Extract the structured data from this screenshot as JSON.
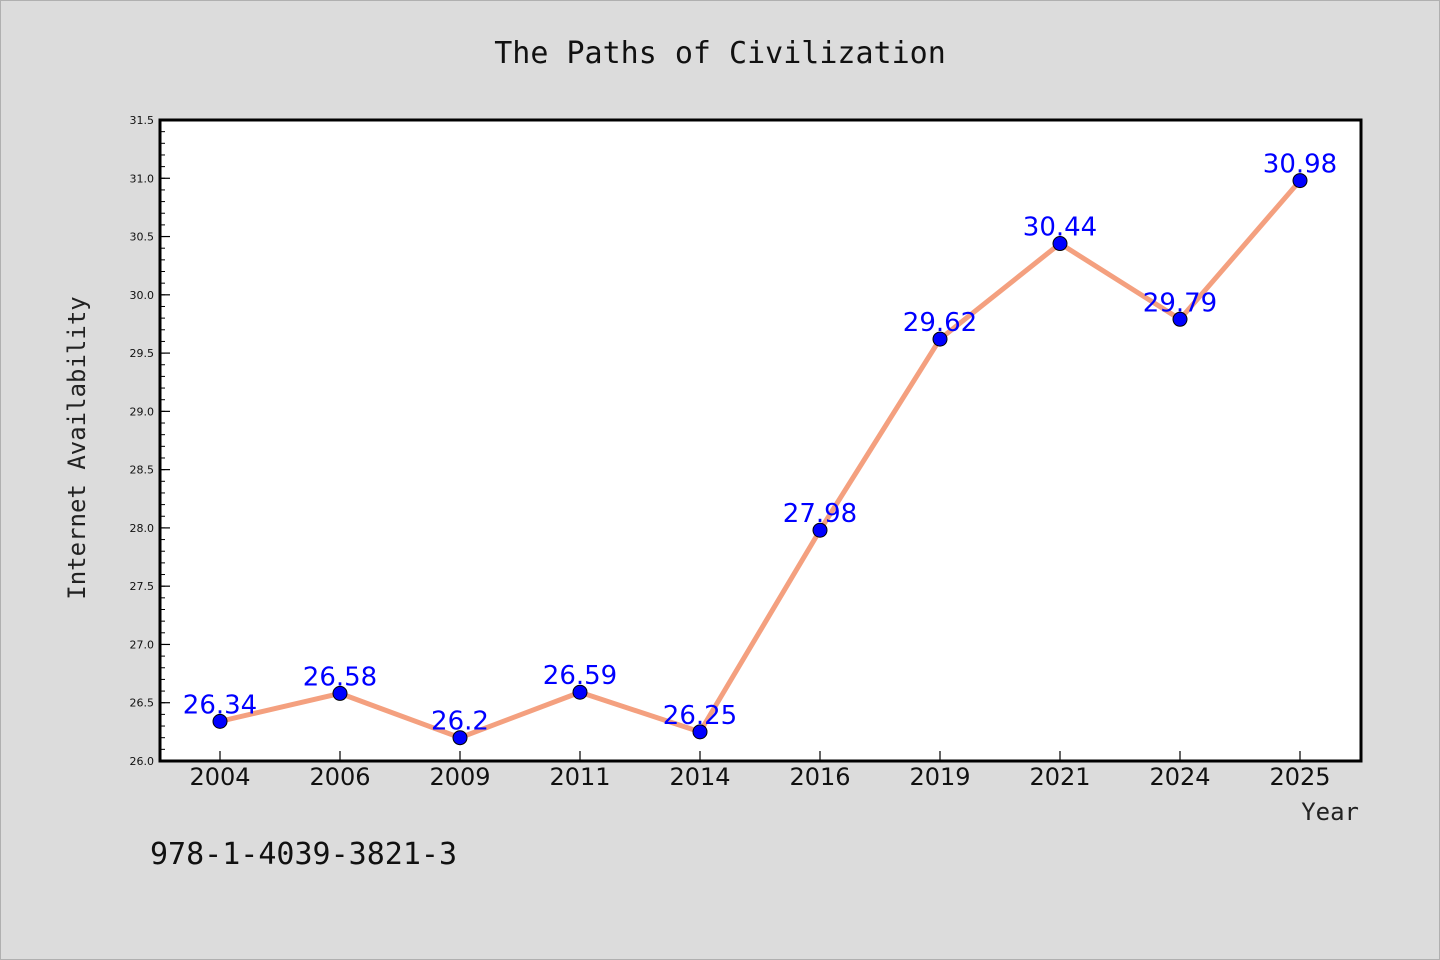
{
  "chart_data": {
    "type": "line",
    "title": "The Paths of Civilization",
    "xlabel": "Year",
    "ylabel": "Internet Availability",
    "categories": [
      "2004",
      "2006",
      "2009",
      "2011",
      "2014",
      "2016",
      "2019",
      "2021",
      "2024",
      "2025"
    ],
    "series": [
      {
        "values": [
          26.34,
          26.58,
          26.2,
          26.59,
          26.25,
          27.98,
          29.62,
          30.44,
          29.79,
          30.98
        ]
      }
    ],
    "data_labels": [
      "26.34",
      "26.58",
      "26.2",
      "26.59",
      "26.25",
      "27.98",
      "29.62",
      "30.44",
      "29.79",
      "30.98"
    ],
    "ylim": [
      26.0,
      31.5
    ],
    "yticks": [
      "26.0",
      "26.5",
      "27.0",
      "27.5",
      "28.0",
      "28.5",
      "29.0",
      "29.5",
      "30.0",
      "30.5",
      "31.0",
      "31.5"
    ],
    "grid": false,
    "colors": {
      "line": "#f4a07f",
      "marker": "#0000ff",
      "data_label": "#0000ff",
      "background": "#dcdcdc",
      "plot_background": "#ffffff"
    }
  },
  "footer_text": "978-1-4039-3821-3"
}
